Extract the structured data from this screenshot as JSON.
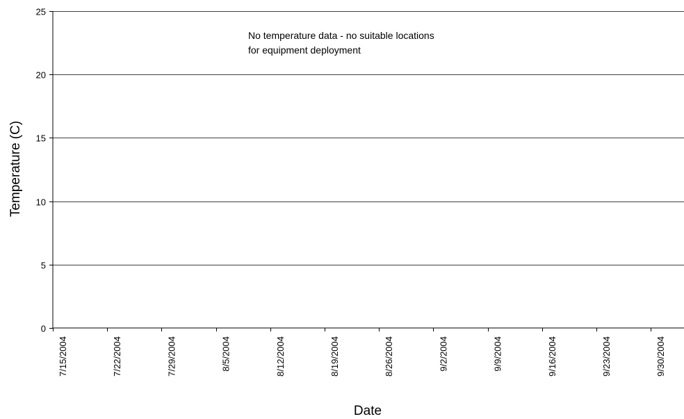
{
  "chart_data": {
    "type": "line",
    "title": "",
    "xlabel": "Date",
    "ylabel": "Temperature (C)",
    "ylim": [
      0,
      25
    ],
    "y_ticks": [
      0,
      5,
      10,
      15,
      20,
      25
    ],
    "x_ticks": [
      "7/15/2004",
      "7/22/2004",
      "7/29/2004",
      "8/5/2004",
      "8/12/2004",
      "8/19/2004",
      "8/26/2004",
      "9/2/2004",
      "9/9/2004",
      "9/16/2004",
      "9/23/2004",
      "9/30/2004"
    ],
    "grid": true,
    "legend": "none",
    "series": [],
    "annotation": {
      "line1": "No temperature data - no suitable locations",
      "line2": "for equipment deployment"
    }
  }
}
